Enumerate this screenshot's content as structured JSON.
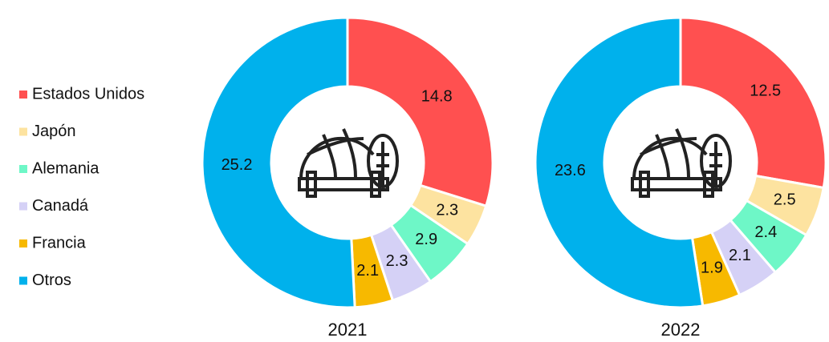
{
  "chart_data": [
    {
      "type": "pie",
      "title": "2021",
      "categories": [
        "Estados Unidos",
        "Japón",
        "Alemania",
        "Canadá",
        "Francia",
        "Otros"
      ],
      "colors": [
        "#ff5050",
        "#fde3a0",
        "#6ef7c7",
        "#d5d1f6",
        "#f7b900",
        "#00b1ec"
      ],
      "values": [
        14.8,
        2.3,
        2.9,
        2.3,
        2.1,
        25.2
      ]
    },
    {
      "type": "pie",
      "title": "2022",
      "values": [
        12.5,
        2.5,
        2.4,
        2.1,
        1.9,
        23.6
      ]
    }
  ]
}
